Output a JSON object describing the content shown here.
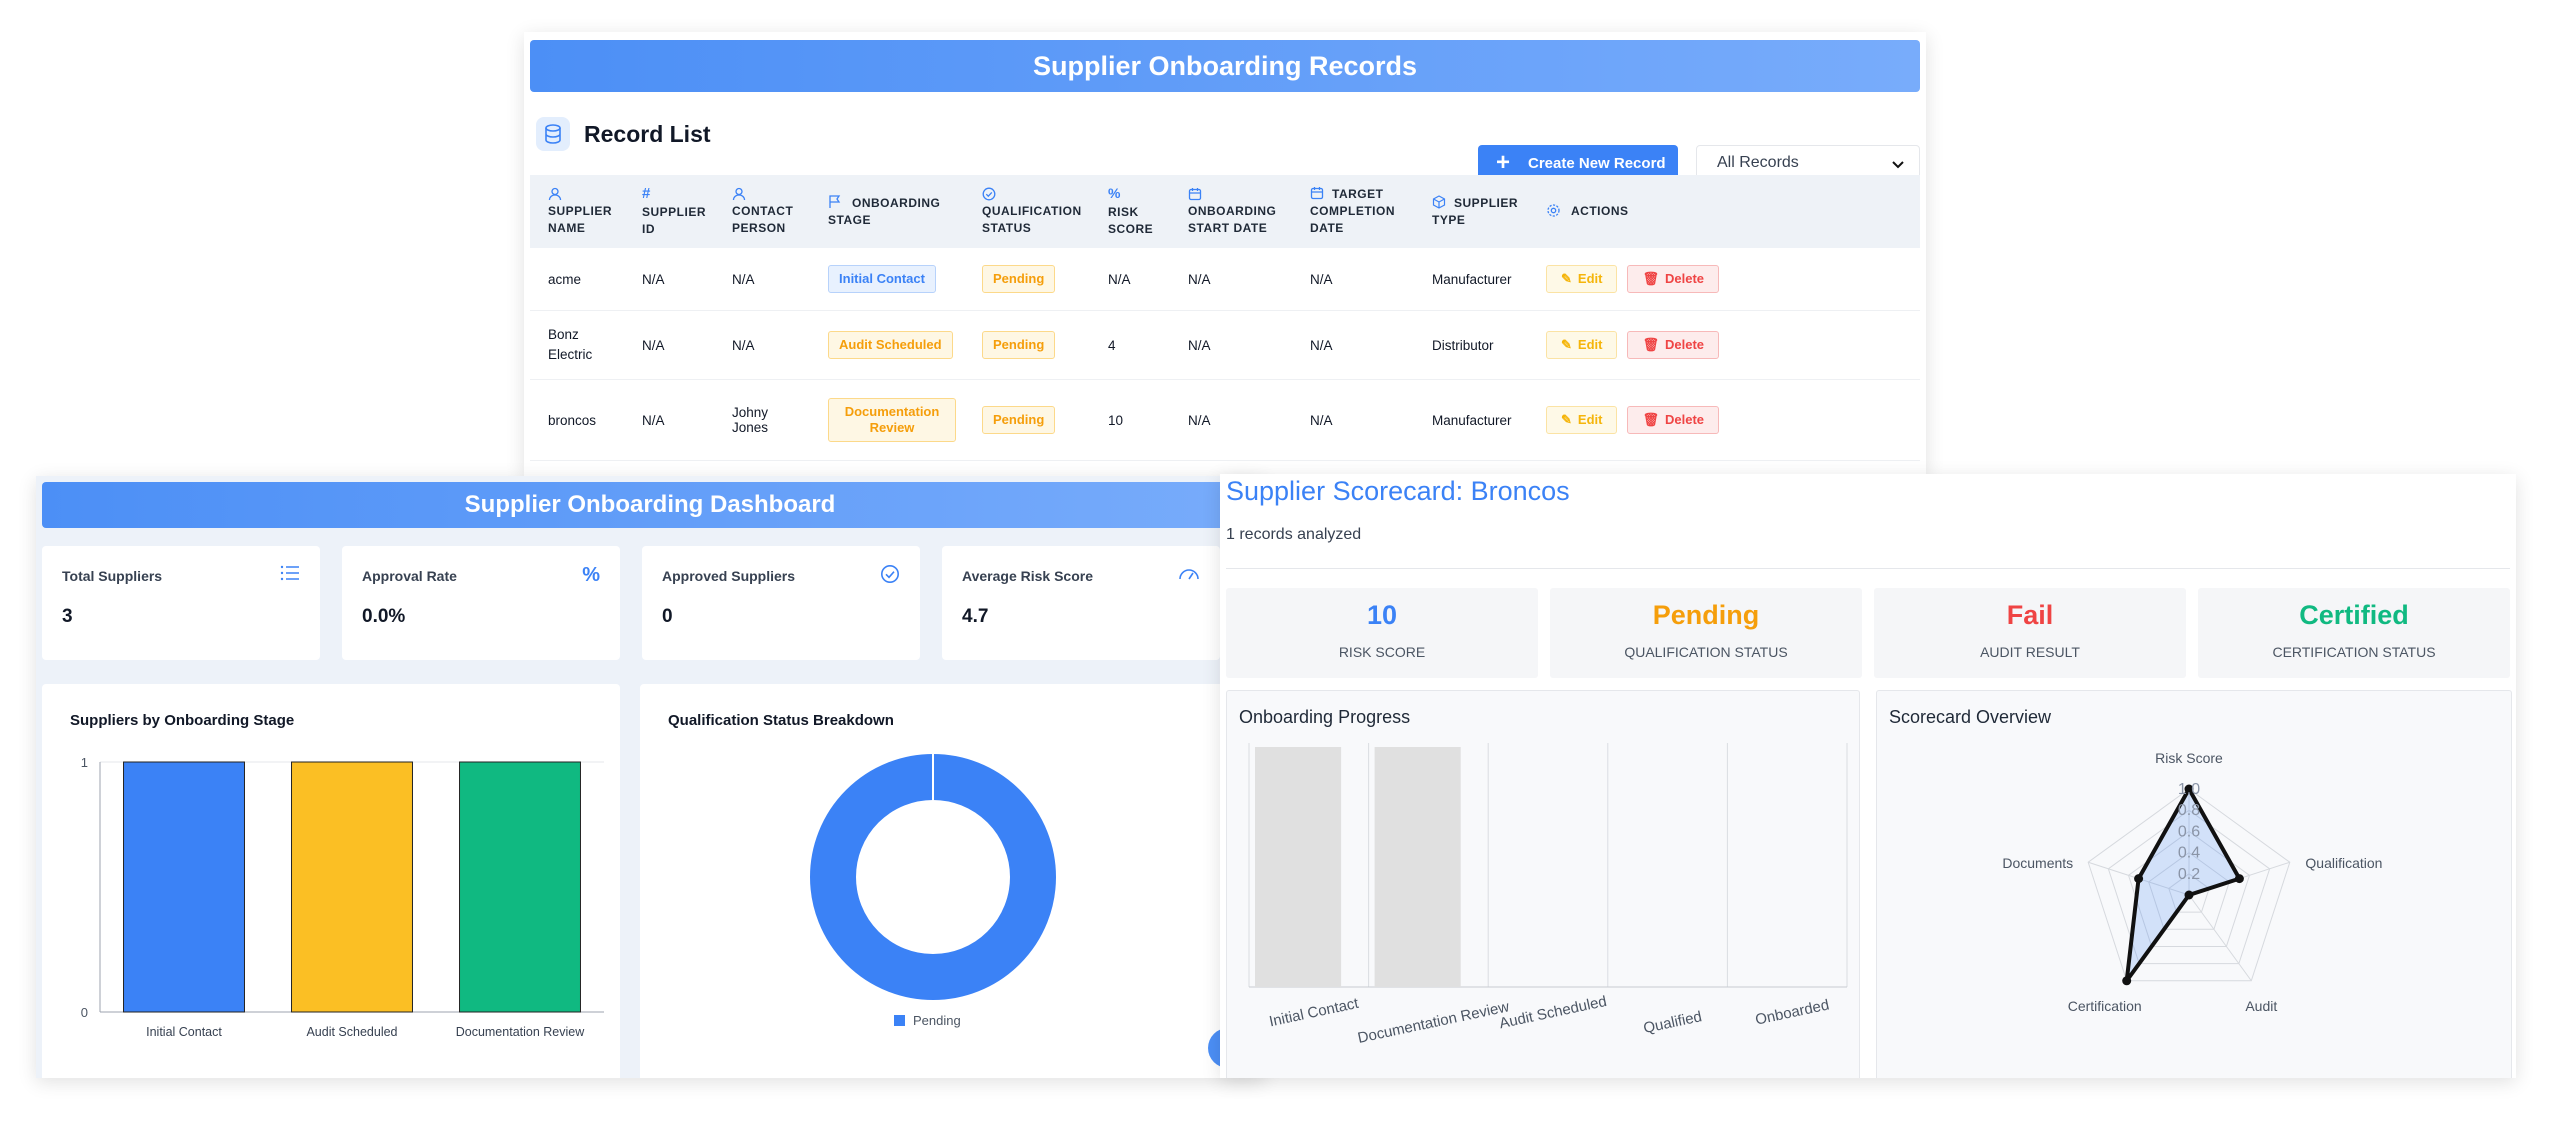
{
  "records": {
    "title": "Supplier Onboarding Records",
    "list_title": "Record List",
    "create_label": "Create New Record",
    "filter_value": "All Records",
    "columns": [
      "Supplier Name",
      "Supplier ID",
      "Contact Person",
      "Onboarding Stage",
      "Qualification Status",
      "Risk Score",
      "Onboarding Start Date",
      "Target Completion Date",
      "Supplier Type",
      "Actions"
    ],
    "rows": [
      {
        "name": "acme",
        "id": "N/A",
        "contact": "N/A",
        "stage": "Initial Contact",
        "qual": "Pending",
        "risk": "N/A",
        "start": "N/A",
        "target": "N/A",
        "type": "Manufacturer"
      },
      {
        "name": "Bonz Electric",
        "id": "N/A",
        "contact": "N/A",
        "stage": "Audit Scheduled",
        "qual": "Pending",
        "risk": "4",
        "start": "N/A",
        "target": "N/A",
        "type": "Distributor"
      },
      {
        "name": "broncos",
        "id": "N/A",
        "contact": "Johny Jones",
        "stage": "Documentation Review",
        "qual": "Pending",
        "risk": "10",
        "start": "N/A",
        "target": "N/A",
        "type": "Manufacturer"
      }
    ],
    "edit_label": "Edit",
    "delete_label": "Delete"
  },
  "dashboard": {
    "title": "Supplier Onboarding Dashboard",
    "stats": [
      {
        "label": "Total Suppliers",
        "value": "3",
        "icon": "list-icon"
      },
      {
        "label": "Approval Rate",
        "value": "0.0%",
        "icon": "percent-icon"
      },
      {
        "label": "Approved Suppliers",
        "value": "0",
        "icon": "check-circle-icon"
      },
      {
        "label": "Average Risk Score",
        "value": "4.7",
        "icon": "gauge-icon"
      }
    ],
    "bar_title": "Suppliers by Onboarding Stage",
    "donut_title": "Qualification Status Breakdown",
    "donut_legend": "Pending"
  },
  "scorecard": {
    "title": "Supplier Scorecard: Broncos",
    "subtitle": "1 records analyzed",
    "kpis": [
      {
        "value": "10",
        "label": "Risk Score",
        "color": "#3b82f6"
      },
      {
        "value": "Pending",
        "label": "Qualification Status",
        "color": "#f59e0b"
      },
      {
        "value": "Fail",
        "label": "Audit Result",
        "color": "#ef4444"
      },
      {
        "value": "Certified",
        "label": "Certification Status",
        "color": "#10b981"
      }
    ],
    "progress_title": "Onboarding Progress",
    "overview_title": "Scorecard Overview"
  },
  "chart_data": [
    {
      "type": "bar",
      "title": "Suppliers by Onboarding Stage",
      "categories": [
        "Initial Contact",
        "Audit Scheduled",
        "Documentation Review"
      ],
      "values": [
        1,
        1,
        1
      ],
      "colors": [
        "#3b82f6",
        "#fbbf24",
        "#10b981"
      ],
      "ylim": [
        0,
        1
      ],
      "yticks": [
        "0",
        "1"
      ]
    },
    {
      "type": "pie",
      "title": "Qualification Status Breakdown",
      "categories": [
        "Pending"
      ],
      "values": [
        1
      ],
      "colors": [
        "#3b82f6"
      ],
      "donut": true
    },
    {
      "type": "bar",
      "title": "Onboarding Progress",
      "categories": [
        "Initial Contact",
        "Documentation Review",
        "Audit Scheduled",
        "Qualified",
        "Onboarded"
      ],
      "values": [
        1,
        1,
        0,
        0,
        0
      ],
      "colors": [
        "#e0e0e0"
      ]
    },
    {
      "type": "radar",
      "title": "Scorecard Overview",
      "categories": [
        "Risk Score",
        "Qualification",
        "Audit",
        "Certification",
        "Documents"
      ],
      "values": [
        1.0,
        0.5,
        0.0,
        1.0,
        0.5
      ],
      "rticks": [
        "0.2",
        "0.4",
        "0.6",
        "0.8",
        "1.0"
      ]
    }
  ]
}
